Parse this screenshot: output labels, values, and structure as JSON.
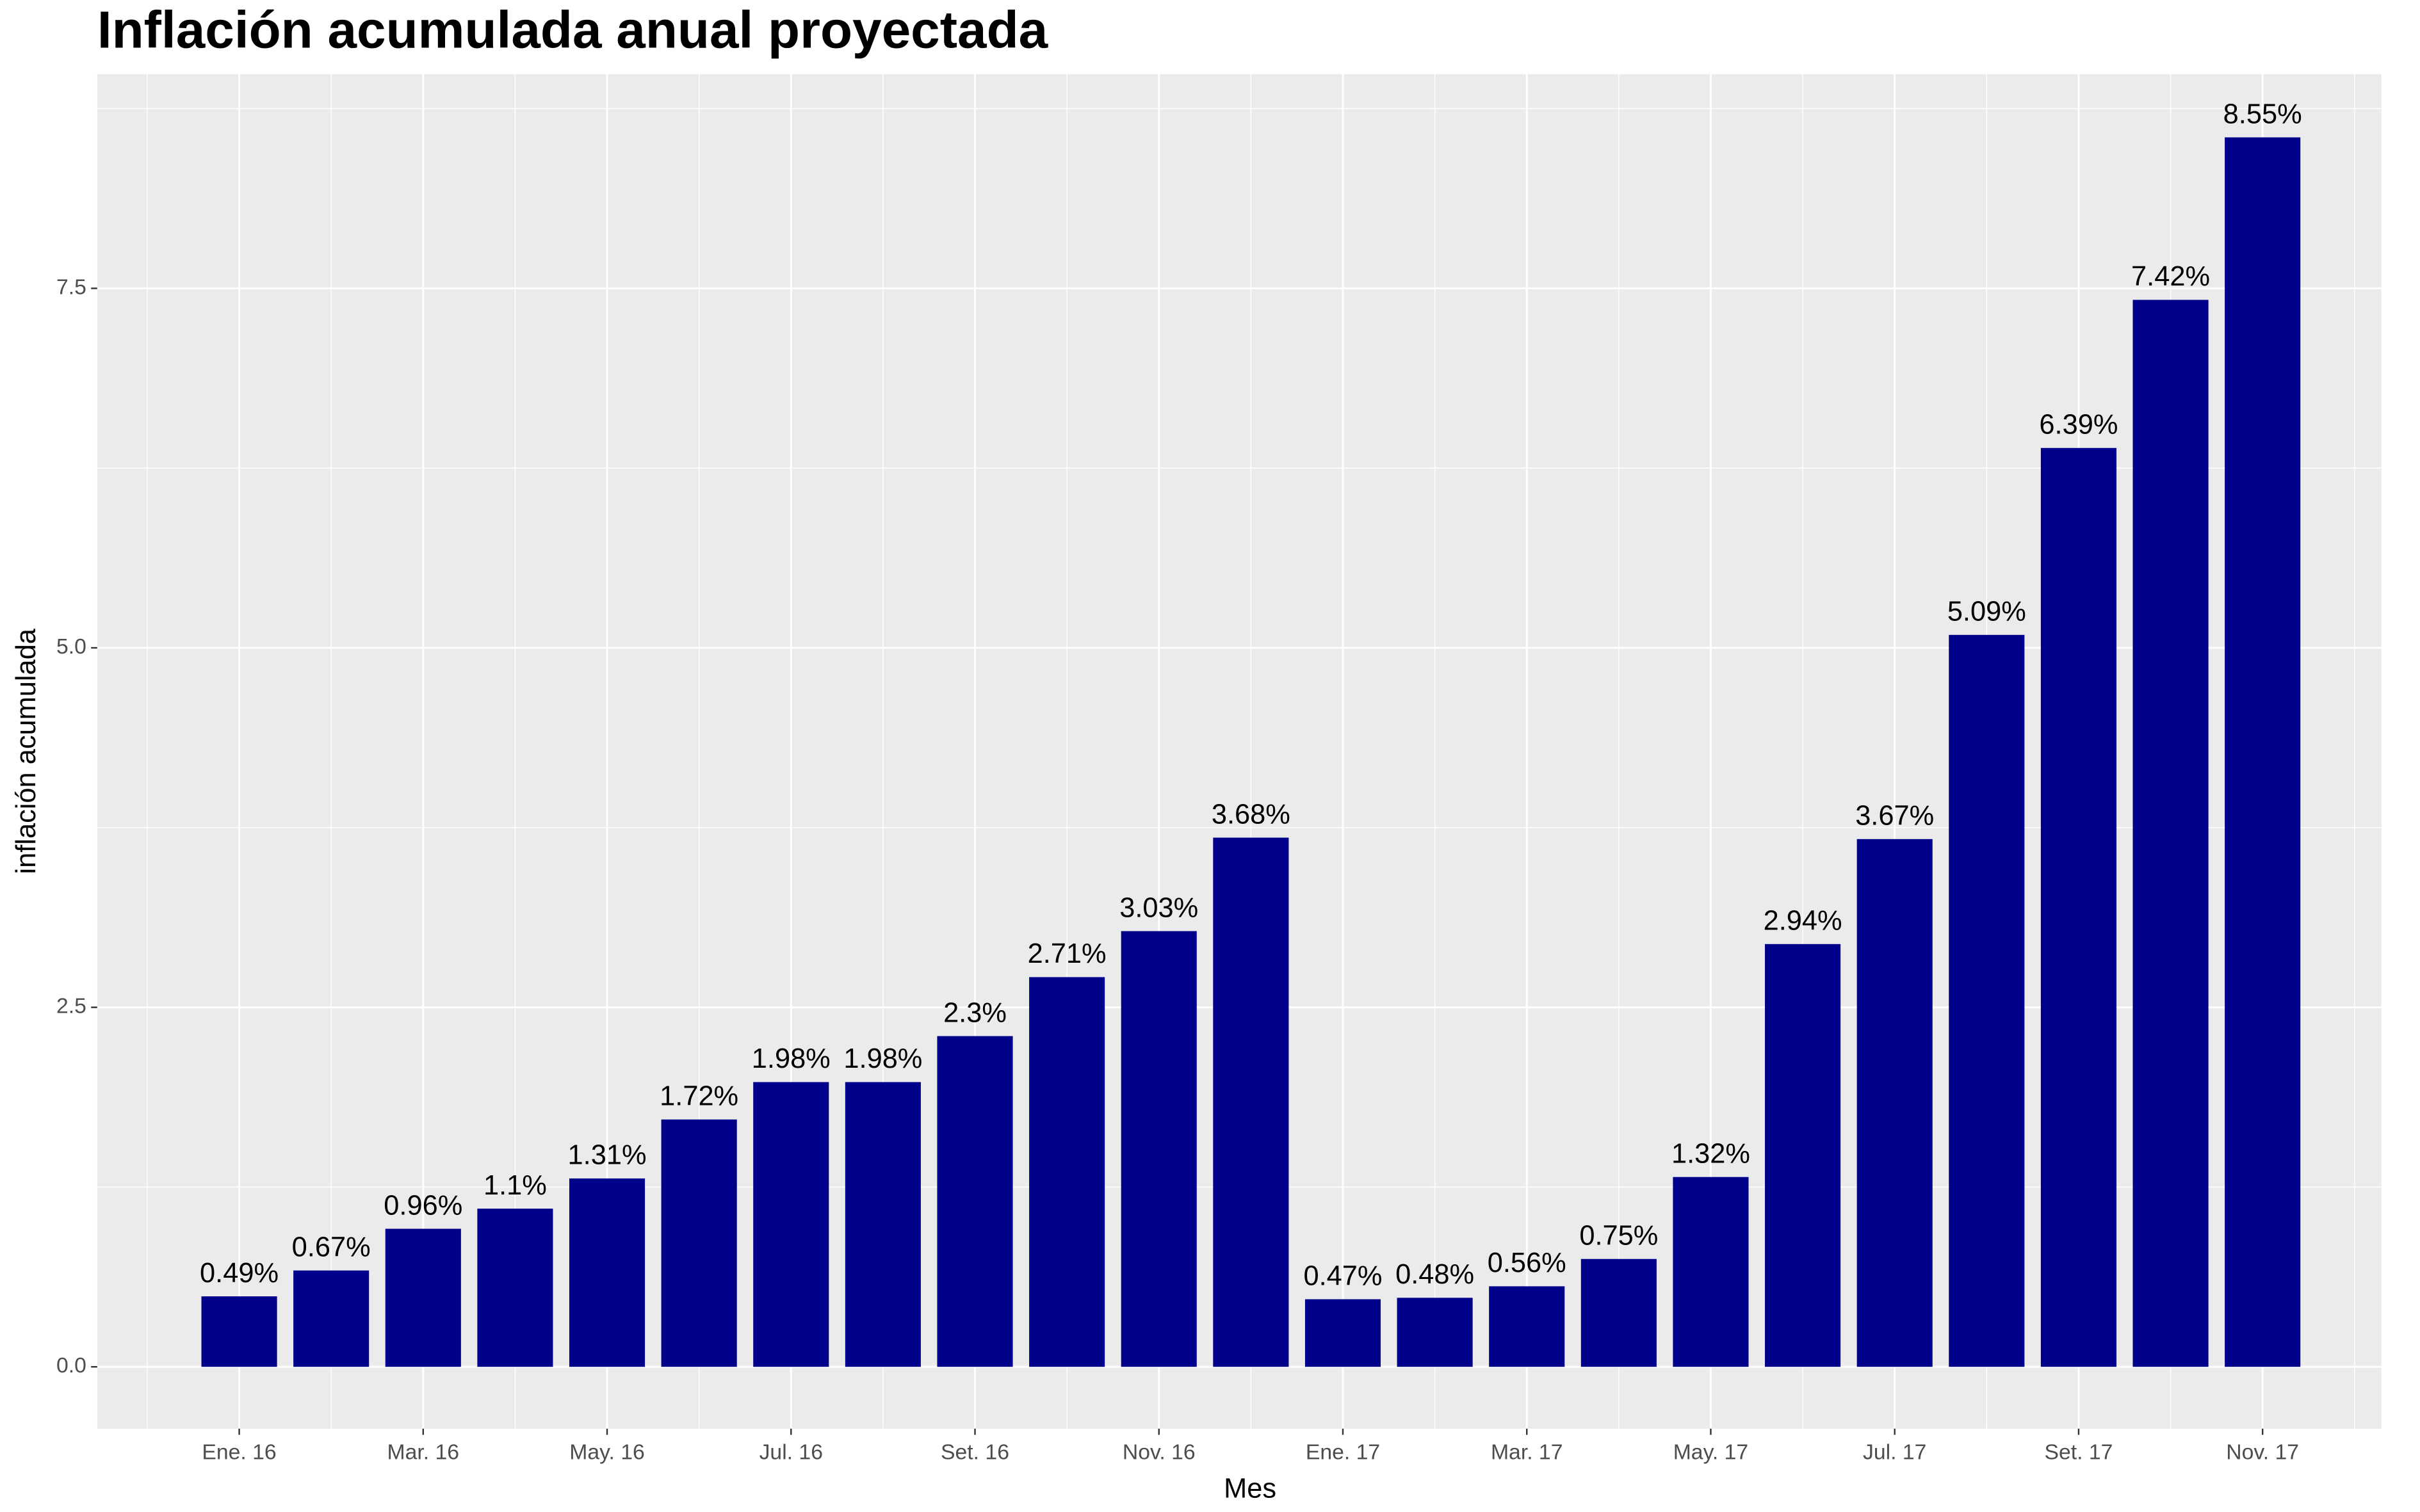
{
  "chart_data": {
    "type": "bar",
    "title": "Inflación acumulada anual proyectada",
    "x_label": "Mes",
    "y_label": "inflación acumulada",
    "categories": [
      "Ene. 16",
      null,
      "Mar. 16",
      null,
      "May. 16",
      null,
      "Jul. 16",
      null,
      "Set. 16",
      null,
      "Nov. 16",
      null,
      "Ene. 17",
      null,
      "Mar. 17",
      null,
      "May. 17",
      null,
      "Jul. 17",
      null,
      "Set. 17",
      null,
      "Nov. 17",
      null
    ],
    "values": [
      0.49,
      0.67,
      0.96,
      1.1,
      1.31,
      1.72,
      1.98,
      1.98,
      2.3,
      2.71,
      3.03,
      3.68,
      0.47,
      0.48,
      0.56,
      0.75,
      1.32,
      2.94,
      3.67,
      5.09,
      6.39,
      7.42,
      8.55,
      null
    ],
    "value_labels": [
      "0.49%",
      "0.67%",
      "0.96%",
      "1.1%",
      "1.31%",
      "1.72%",
      "1.98%",
      "1.98%",
      "2.3%",
      "2.71%",
      "3.03%",
      "3.68%",
      "0.47%",
      "0.48%",
      "0.56%",
      "0.75%",
      "1.32%",
      "2.94%",
      "3.67%",
      "5.09%",
      "6.39%",
      "7.42%",
      "8.55%",
      null
    ],
    "color": "#00008b",
    "ylim": [
      -0.43,
      8.99
    ],
    "yticks": [
      {
        "value": 0,
        "label": "0.0"
      },
      2.5,
      {
        "value": 5,
        "label": "5.0"
      },
      7.5
    ],
    "grid": true
  }
}
